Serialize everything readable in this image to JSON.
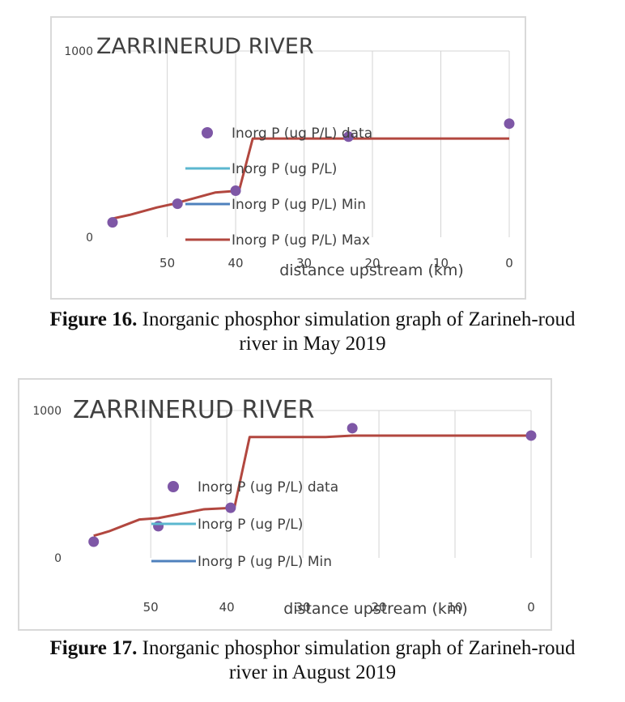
{
  "colors": {
    "data": "#7e57a6",
    "line": "#5bb7cf",
    "min": "#4f81bd",
    "max": "#b2473f",
    "grid": "#d4d4d4",
    "text": "#404040"
  },
  "chart_data": [
    {
      "type": "line",
      "title": "ZARRINERUD RIVER",
      "xlabel": "distance upstream (km)",
      "ylabel": "",
      "x_ticks": [
        "50",
        "40",
        "30",
        "20",
        "10",
        "0"
      ],
      "y_ticks": [
        "1000",
        "0"
      ],
      "xlim": [
        58,
        0
      ],
      "ylim": [
        0,
        1000
      ],
      "x_reversed": true,
      "grid": "vertical",
      "legend": [
        "Inorg P (ug P/L) data",
        "Inorg P (ug P/L)",
        "Inorg P (ug P/L) Min",
        "Inorg P (ug P/L) Max"
      ],
      "legend_placement": "center",
      "series": [
        {
          "name": "Inorg P (ug P/L) data",
          "style": "marker",
          "x": [
            58,
            48.5,
            40,
            23.5,
            0
          ],
          "y": [
            80,
            180,
            250,
            540,
            610
          ]
        },
        {
          "name": "Inorg P (ug P/L) Max",
          "style": "line",
          "x": [
            58,
            55.5,
            53.5,
            51.5,
            49,
            46,
            43,
            39.5,
            37.5,
            0
          ],
          "y": [
            100,
            120,
            140,
            160,
            180,
            210,
            240,
            250,
            530,
            530
          ]
        }
      ]
    },
    {
      "type": "line",
      "title": "ZARRINERUD RIVER",
      "xlabel": "distance upstream (km)",
      "ylabel": "",
      "x_ticks": [
        "50",
        "40",
        "30",
        "20",
        "10",
        "0"
      ],
      "y_ticks": [
        "1000",
        "0"
      ],
      "xlim": [
        58,
        0
      ],
      "ylim": [
        0,
        1000
      ],
      "x_reversed": true,
      "grid": "vertical",
      "legend": [
        "Inorg P (ug P/L) data",
        "Inorg P (ug P/L)",
        "Inorg P (ug P/L) Min"
      ],
      "legend_placement": "center",
      "series": [
        {
          "name": "Inorg P (ug P/L) data",
          "style": "marker",
          "x": [
            57.5,
            49,
            39.5,
            23.5,
            0
          ],
          "y": [
            110,
            215,
            340,
            880,
            830
          ]
        },
        {
          "name": "Inorg P (ug P/L)",
          "style": "line",
          "x": [
            57.5,
            55.5,
            53.5,
            51.5,
            49,
            46,
            43,
            39,
            37,
            27,
            23.5,
            0
          ],
          "y": [
            150,
            180,
            220,
            260,
            270,
            300,
            330,
            340,
            820,
            820,
            830,
            830
          ]
        }
      ]
    }
  ],
  "captions": [
    {
      "label": "Figure 16.",
      "text": " Inorganic phosphor simulation graph of Zarineh-roud",
      "line2": "river in May 2019"
    },
    {
      "label": "Figure 17.",
      "text": " Inorganic phosphor simulation graph of Zarineh-roud",
      "line2": "river in August 2019"
    }
  ]
}
